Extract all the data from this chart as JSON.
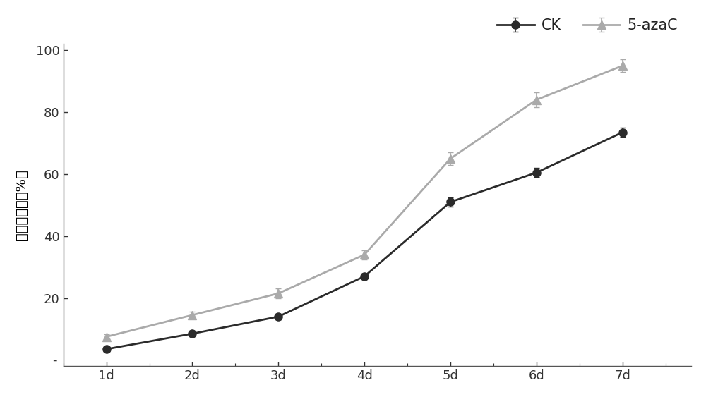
{
  "x_labels": [
    "1d",
    "2d",
    "3d",
    "4d",
    "5d",
    "6d",
    "7d"
  ],
  "x_values": [
    1,
    2,
    3,
    4,
    5,
    6,
    7
  ],
  "CK_y": [
    3.5,
    8.5,
    14.0,
    27.0,
    51.0,
    60.5,
    73.5
  ],
  "CK_err": [
    0.8,
    0.8,
    0.8,
    1.0,
    1.5,
    1.5,
    1.5
  ],
  "azaC_y": [
    7.5,
    14.5,
    21.5,
    34.0,
    65.0,
    84.0,
    95.0
  ],
  "azaC_err": [
    0.8,
    1.0,
    1.5,
    1.5,
    2.0,
    2.5,
    2.0
  ],
  "CK_color": "#2b2b2b",
  "azaC_color": "#aaaaaa",
  "ylabel": "种子发芽率（%）",
  "ylim": [
    -2,
    102
  ],
  "yticks": [
    20,
    40,
    60,
    80,
    100
  ],
  "legend_CK": "CK",
  "legend_azaC": "5-azaC",
  "background_color": "#ffffff",
  "linewidth": 2.0,
  "markersize_CK": 8,
  "markersize_azaC": 9,
  "spine_color": "#555555",
  "tick_color": "#333333",
  "label_fontsize": 13,
  "legend_fontsize": 15
}
